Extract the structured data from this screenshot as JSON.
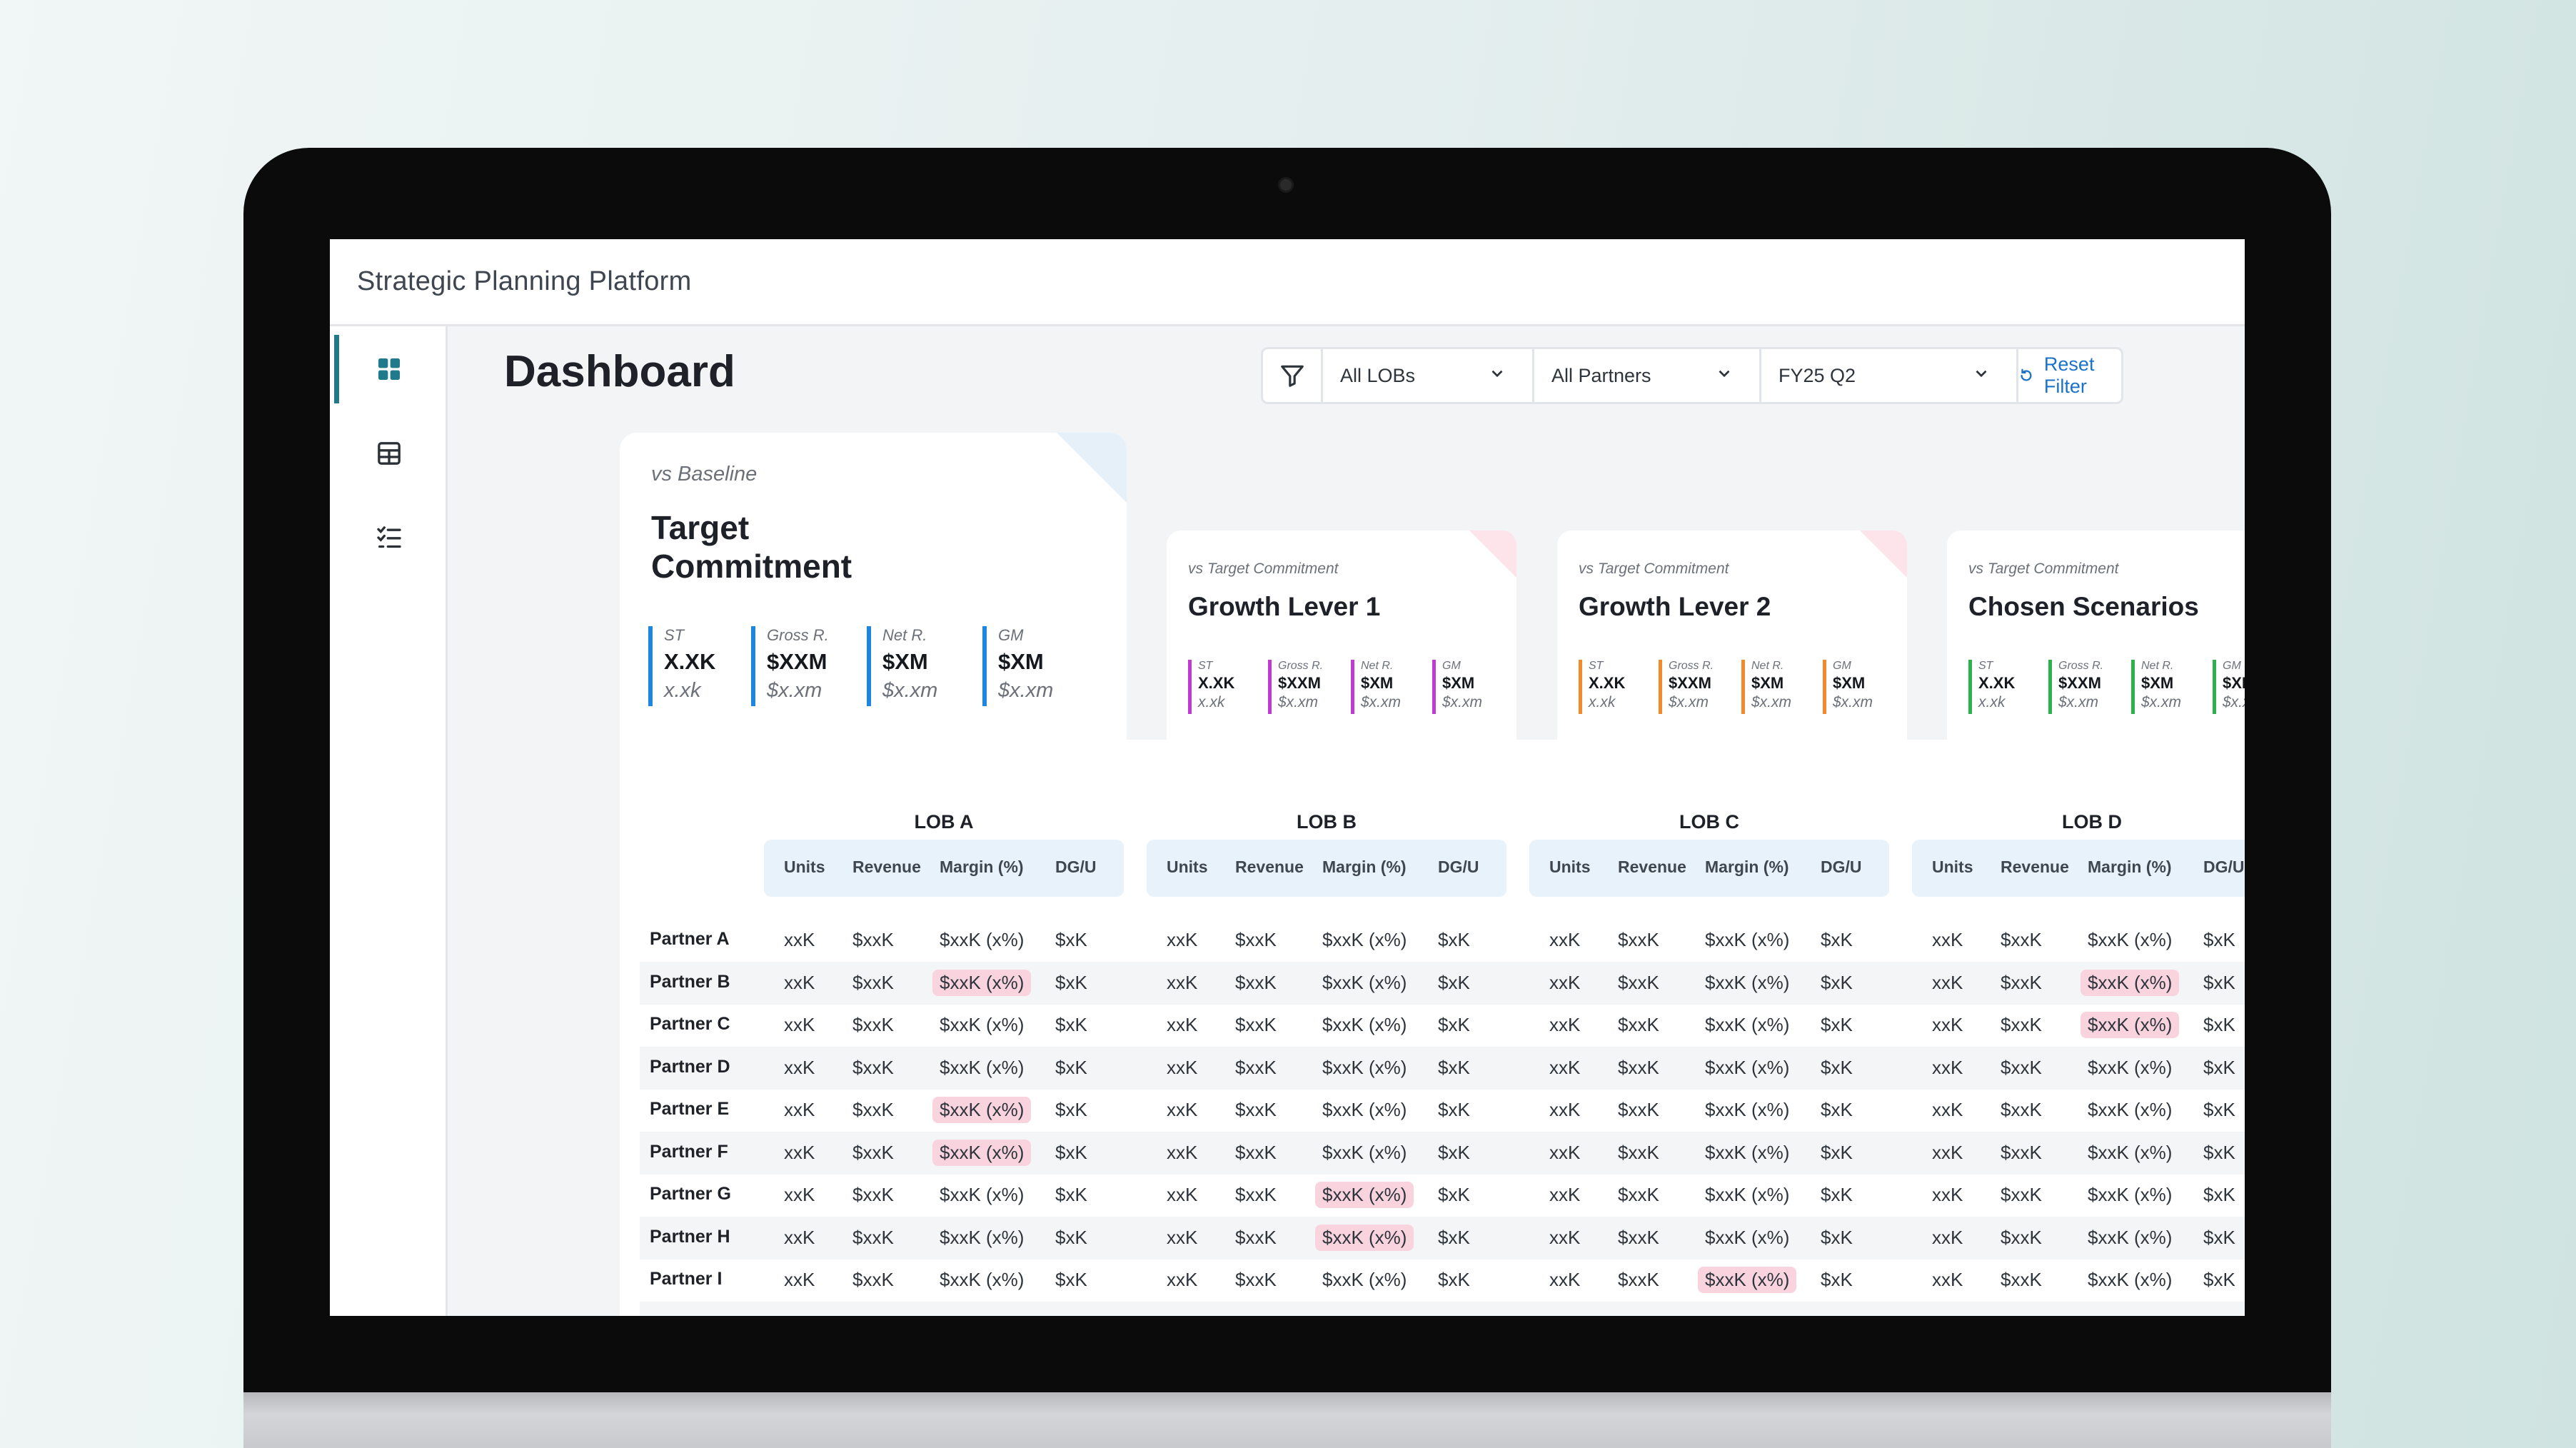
{
  "app": {
    "title": "Strategic Planning Platform"
  },
  "sidebar": {
    "items": [
      {
        "name": "dashboard",
        "active": true
      },
      {
        "name": "table",
        "active": false
      },
      {
        "name": "checklist",
        "active": false
      }
    ]
  },
  "page": {
    "title": "Dashboard"
  },
  "filters": {
    "lob": "All LOBs",
    "partner": "All Partners",
    "period": "FY25 Q2",
    "reset_label": "Reset Filter"
  },
  "colors": {
    "accent": "#1f7b8c",
    "link": "#1a73c8",
    "baseline_bar": "#1f86e0",
    "lever1_bar": "#c03ad3",
    "lever2_bar": "#f08a2c",
    "scenarios_bar": "#2eb14c",
    "highlight": "#f9d4de"
  },
  "cards": {
    "main": {
      "subtitle": "vs Baseline",
      "title_line1": "Target",
      "title_line2": "Commitment",
      "metrics": [
        {
          "label": "ST",
          "value": "X.XK",
          "sub": "x.xk"
        },
        {
          "label": "Gross R.",
          "value": "$XXM",
          "sub": "$x.xm"
        },
        {
          "label": "Net R.",
          "value": "$XM",
          "sub": "$x.xm"
        },
        {
          "label": "GM",
          "value": "$XM",
          "sub": "$x.xm"
        }
      ]
    },
    "small": [
      {
        "subtitle": "vs Target Commitment",
        "title": "Growth Lever 1",
        "metrics": [
          {
            "label": "ST",
            "value": "X.XK",
            "sub": "x.xk"
          },
          {
            "label": "Gross R.",
            "value": "$XXM",
            "sub": "$x.xm"
          },
          {
            "label": "Net R.",
            "value": "$XM",
            "sub": "$x.xm"
          },
          {
            "label": "GM",
            "value": "$XM",
            "sub": "$x.xm"
          }
        ]
      },
      {
        "subtitle": "vs Target Commitment",
        "title": "Growth Lever 2",
        "metrics": [
          {
            "label": "ST",
            "value": "X.XK",
            "sub": "x.xk"
          },
          {
            "label": "Gross R.",
            "value": "$XXM",
            "sub": "$x.xm"
          },
          {
            "label": "Net R.",
            "value": "$XM",
            "sub": "$x.xm"
          },
          {
            "label": "GM",
            "value": "$XM",
            "sub": "$x.xm"
          }
        ]
      },
      {
        "subtitle": "vs Target Commitment",
        "title": "Chosen Scenarios",
        "metrics": [
          {
            "label": "ST",
            "value": "X.XK",
            "sub": "x.xk"
          },
          {
            "label": "Gross R.",
            "value": "$XXM",
            "sub": "$x.xm"
          },
          {
            "label": "Net R.",
            "value": "$XM",
            "sub": "$x.xm"
          },
          {
            "label": "GM",
            "value": "$XM",
            "sub": "$x.xm"
          }
        ]
      }
    ]
  },
  "table": {
    "lobs": [
      "LOB A",
      "LOB B",
      "LOB C",
      "LOB D"
    ],
    "columns": [
      "Units",
      "Revenue",
      "Margin (%)",
      "DG/U"
    ],
    "cell_values": [
      "xxK",
      "$xxK",
      "$xxK (x%)",
      "$xK"
    ],
    "partners": [
      "Partner A",
      "Partner B",
      "Partner C",
      "Partner D",
      "Partner E",
      "Partner F",
      "Partner G",
      "Partner H",
      "Partner I"
    ],
    "highlighted_margin": [
      {
        "partner": "Partner B",
        "lob": "LOB A"
      },
      {
        "partner": "Partner E",
        "lob": "LOB A"
      },
      {
        "partner": "Partner F",
        "lob": "LOB A"
      },
      {
        "partner": "Partner G",
        "lob": "LOB B"
      },
      {
        "partner": "Partner H",
        "lob": "LOB B"
      },
      {
        "partner": "Partner I",
        "lob": "LOB C"
      },
      {
        "partner": "Partner B",
        "lob": "LOB D"
      },
      {
        "partner": "Partner C",
        "lob": "LOB D"
      }
    ]
  }
}
